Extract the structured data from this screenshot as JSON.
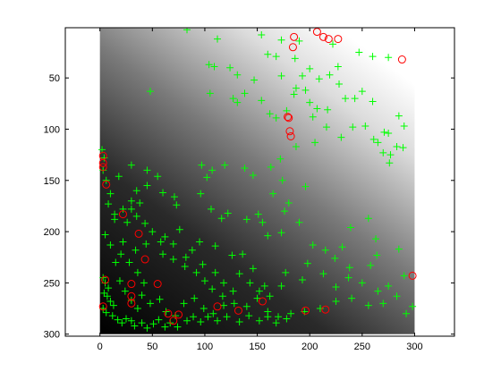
{
  "chart_data": {
    "type": "scatter",
    "title": "",
    "xlabel": "",
    "ylabel": "",
    "xlim": [
      -33,
      338
    ],
    "ylim": [
      302,
      1
    ],
    "y_reversed": true,
    "x_ticks": [
      "0",
      "50",
      "100",
      "150",
      "200",
      "250",
      "300"
    ],
    "y_ticks": [
      "50",
      "100",
      "150",
      "200",
      "250",
      "300"
    ],
    "x_tick_values": [
      0,
      50,
      100,
      150,
      200,
      250,
      300
    ],
    "y_tick_values": [
      50,
      100,
      150,
      200,
      250,
      300
    ],
    "background": {
      "kind": "grayscale elevation image",
      "extent_x": [
        0,
        300
      ],
      "extent_y": [
        0,
        300
      ]
    },
    "series": [
      {
        "marker": "plus",
        "color": "#00ff00",
        "points": [
          [
            83,
            3
          ],
          [
            112,
            12
          ],
          [
            154,
            8
          ],
          [
            173,
            13
          ],
          [
            190,
            14
          ],
          [
            222,
            17
          ],
          [
            247,
            25
          ],
          [
            260,
            29
          ],
          [
            275,
            30
          ],
          [
            160,
            27
          ],
          [
            186,
            31
          ],
          [
            168,
            29
          ],
          [
            104,
            37
          ],
          [
            109,
            39
          ],
          [
            124,
            40
          ],
          [
            131,
            47
          ],
          [
            147,
            52
          ],
          [
            173,
            48
          ],
          [
            200,
            41
          ],
          [
            193,
            48
          ],
          [
            209,
            51
          ],
          [
            219,
            47
          ],
          [
            227,
            39
          ],
          [
            187,
            60
          ],
          [
            196,
            62
          ],
          [
            228,
            56
          ],
          [
            250,
            63
          ],
          [
            234,
            70
          ],
          [
            243,
            70
          ],
          [
            260,
            73
          ],
          [
            105,
            65
          ],
          [
            127,
            70
          ],
          [
            138,
            65
          ],
          [
            131,
            74
          ],
          [
            154,
            72
          ],
          [
            162,
            85
          ],
          [
            168,
            89
          ],
          [
            178,
            82
          ],
          [
            185,
            66
          ],
          [
            200,
            74
          ],
          [
            207,
            80
          ],
          [
            217,
            81
          ],
          [
            203,
            88
          ],
          [
            216,
            98
          ],
          [
            241,
            98
          ],
          [
            253,
            97
          ],
          [
            261,
            110
          ],
          [
            265,
            113
          ],
          [
            271,
            103
          ],
          [
            275,
            104
          ],
          [
            285,
            87
          ],
          [
            290,
            97
          ],
          [
            283,
            117
          ],
          [
            270,
            123
          ],
          [
            289,
            118
          ],
          [
            276,
            133
          ],
          [
            277,
            125
          ],
          [
            230,
            108
          ],
          [
            205,
            113
          ],
          [
            187,
            117
          ],
          [
            172,
            129
          ],
          [
            163,
            137
          ],
          [
            174,
            150
          ],
          [
            196,
            156
          ],
          [
            180,
            172
          ],
          [
            165,
            163
          ],
          [
            146,
            145
          ],
          [
            138,
            138
          ],
          [
            119,
            135
          ],
          [
            107,
            140
          ],
          [
            97,
            135
          ],
          [
            102,
            147
          ],
          [
            96,
            163
          ],
          [
            106,
            178
          ],
          [
            116,
            187
          ],
          [
            122,
            182
          ],
          [
            140,
            188
          ],
          [
            151,
            183
          ],
          [
            155,
            191
          ],
          [
            160,
            204
          ],
          [
            173,
            201
          ],
          [
            176,
            180
          ],
          [
            190,
            191
          ],
          [
            203,
            213
          ],
          [
            215,
            218
          ],
          [
            231,
            215
          ],
          [
            239,
            196
          ],
          [
            256,
            187
          ],
          [
            263,
            207
          ],
          [
            285,
            217
          ],
          [
            264,
            223
          ],
          [
            258,
            233
          ],
          [
            237,
            245
          ],
          [
            224,
            226
          ],
          [
            213,
            241
          ],
          [
            225,
            254
          ],
          [
            198,
            231
          ],
          [
            193,
            247
          ],
          [
            177,
            240
          ],
          [
            173,
            253
          ],
          [
            157,
            253
          ],
          [
            146,
            236
          ],
          [
            136,
            222
          ],
          [
            126,
            223
          ],
          [
            110,
            214
          ],
          [
            95,
            210
          ],
          [
            76,
            198
          ],
          [
            73,
            174
          ],
          [
            71,
            166
          ],
          [
            60,
            162
          ],
          [
            55,
            146
          ],
          [
            45,
            155
          ],
          [
            35,
            160
          ],
          [
            38,
            172
          ],
          [
            30,
            178
          ],
          [
            26,
            191
          ],
          [
            14,
            188
          ],
          [
            5,
            203
          ],
          [
            10,
            213
          ],
          [
            20,
            222
          ],
          [
            34,
            218
          ],
          [
            44,
            212
          ],
          [
            58,
            210
          ],
          [
            60,
            222
          ],
          [
            70,
            227
          ],
          [
            81,
            234
          ],
          [
            92,
            240
          ],
          [
            100,
            248
          ],
          [
            107,
            256
          ],
          [
            117,
            263
          ],
          [
            128,
            270
          ],
          [
            140,
            273
          ],
          [
            150,
            265
          ],
          [
            160,
            278
          ],
          [
            170,
            283
          ],
          [
            182,
            280
          ],
          [
            195,
            278
          ],
          [
            210,
            275
          ],
          [
            225,
            268
          ],
          [
            240,
            265
          ],
          [
            256,
            272
          ],
          [
            270,
            270
          ],
          [
            283,
            263
          ],
          [
            292,
            280
          ],
          [
            298,
            273
          ],
          [
            290,
            243
          ],
          [
            275,
            253
          ],
          [
            265,
            258
          ],
          [
            250,
            250
          ],
          [
            238,
            235
          ],
          [
            3,
            245
          ],
          [
            5,
            250
          ],
          [
            8,
            255
          ],
          [
            4,
            260
          ],
          [
            7,
            263
          ],
          [
            10,
            268
          ],
          [
            13,
            272
          ],
          [
            3,
            275
          ],
          [
            6,
            279
          ],
          [
            12,
            282
          ],
          [
            17,
            286
          ],
          [
            21,
            289
          ],
          [
            25,
            285
          ],
          [
            30,
            287
          ],
          [
            33,
            292
          ],
          [
            40,
            289
          ],
          [
            45,
            294
          ],
          [
            51,
            290
          ],
          [
            56,
            286
          ],
          [
            62,
            293
          ],
          [
            67,
            289
          ],
          [
            74,
            293
          ],
          [
            83,
            287
          ],
          [
            89,
            283
          ],
          [
            96,
            288
          ],
          [
            103,
            283
          ],
          [
            112,
            287
          ],
          [
            121,
            283
          ],
          [
            133,
            288
          ],
          [
            142,
            282
          ],
          [
            152,
            287
          ],
          [
            160,
            283
          ],
          [
            168,
            289
          ],
          [
            178,
            285
          ],
          [
            2,
            120
          ],
          [
            4,
            128
          ],
          [
            3,
            140
          ],
          [
            6,
            150
          ],
          [
            10,
            163
          ],
          [
            8,
            173
          ],
          [
            14,
            183
          ],
          [
            22,
            178
          ],
          [
            30,
            170
          ],
          [
            35,
            185
          ],
          [
            43,
            192
          ],
          [
            50,
            200
          ],
          [
            62,
            205
          ],
          [
            70,
            212
          ],
          [
            82,
            225
          ],
          [
            88,
            218
          ],
          [
            98,
            232
          ],
          [
            110,
            240
          ],
          [
            118,
            250
          ],
          [
            127,
            258
          ],
          [
            133,
            241
          ],
          [
            143,
            250
          ],
          [
            152,
            258
          ],
          [
            162,
            263
          ],
          [
            40,
            262
          ],
          [
            48,
            270
          ],
          [
            57,
            266
          ],
          [
            63,
            278
          ],
          [
            72,
            282
          ],
          [
            80,
            270
          ],
          [
            90,
            265
          ],
          [
            99,
            275
          ],
          [
            108,
            280
          ],
          [
            118,
            272
          ],
          [
            48,
            63
          ],
          [
            30,
            135
          ],
          [
            45,
            140
          ],
          [
            18,
            146
          ],
          [
            22,
            210
          ],
          [
            28,
            230
          ],
          [
            36,
            240
          ],
          [
            42,
            250
          ],
          [
            15,
            230
          ],
          [
            19,
            248
          ],
          [
            24,
            258
          ],
          [
            30,
            267
          ],
          [
            36,
            275
          ]
        ]
      },
      {
        "marker": "circle",
        "color": "#ff0000",
        "points": [
          [
            207,
            5
          ],
          [
            213,
            10
          ],
          [
            218,
            12
          ],
          [
            227,
            12
          ],
          [
            185,
            10
          ],
          [
            184,
            20
          ],
          [
            288,
            32
          ],
          [
            179,
            88
          ],
          [
            180,
            89
          ],
          [
            181,
            102
          ],
          [
            182,
            107
          ],
          [
            3,
            126
          ],
          [
            3,
            133
          ],
          [
            3,
            137
          ],
          [
            6,
            154
          ],
          [
            22,
            183
          ],
          [
            37,
            202
          ],
          [
            43,
            227
          ],
          [
            30,
            263
          ],
          [
            30,
            270
          ],
          [
            55,
            251
          ],
          [
            5,
            247
          ],
          [
            3,
            273
          ],
          [
            65,
            280
          ],
          [
            75,
            281
          ],
          [
            112,
            273
          ],
          [
            132,
            277
          ],
          [
            155,
            268
          ],
          [
            196,
            277
          ],
          [
            215,
            276
          ],
          [
            298,
            243
          ],
          [
            30,
            251
          ],
          [
            70,
            287
          ]
        ]
      }
    ]
  }
}
